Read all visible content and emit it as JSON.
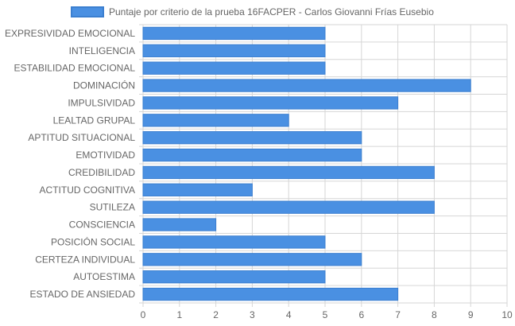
{
  "chart_data": {
    "type": "bar",
    "orientation": "horizontal",
    "categories": [
      "EXPRESIVIDAD EMOCIONAL",
      "INTELIGENCIA",
      "ESTABILIDAD EMOCIONAL",
      "DOMINACIÓN",
      "IMPULSIVIDAD",
      "LEALTAD GRUPAL",
      "APTITUD SITUACIONAL",
      "EMOTIVIDAD",
      "CREDIBILIDAD",
      "ACTITUD COGNITIVA",
      "SUTILEZA",
      "CONSCIENCIA",
      "POSICIÓN SOCIAL",
      "CERTEZA INDIVIDUAL",
      "AUTOESTIMA",
      "ESTADO DE ANSIEDAD"
    ],
    "series": [
      {
        "name": "Puntaje por criterio de la prueba 16FACPER - Carlos Giovanni Frías Eusebio",
        "values": [
          5,
          5,
          5,
          9,
          7,
          4,
          6,
          6,
          8,
          3,
          8,
          2,
          5,
          6,
          5,
          7
        ],
        "color": "#4a90e2"
      }
    ],
    "xlim": [
      0,
      10
    ],
    "x_ticks": [
      "0",
      "1",
      "2",
      "3",
      "4",
      "5",
      "6",
      "7",
      "8",
      "9",
      "10"
    ],
    "grid": true,
    "legend_position": "top"
  },
  "colors": {
    "bar_fill": "#4a90e2",
    "bar_stroke": "#3b7fd0",
    "grid": "#d6d6d6",
    "text": "#666666"
  }
}
